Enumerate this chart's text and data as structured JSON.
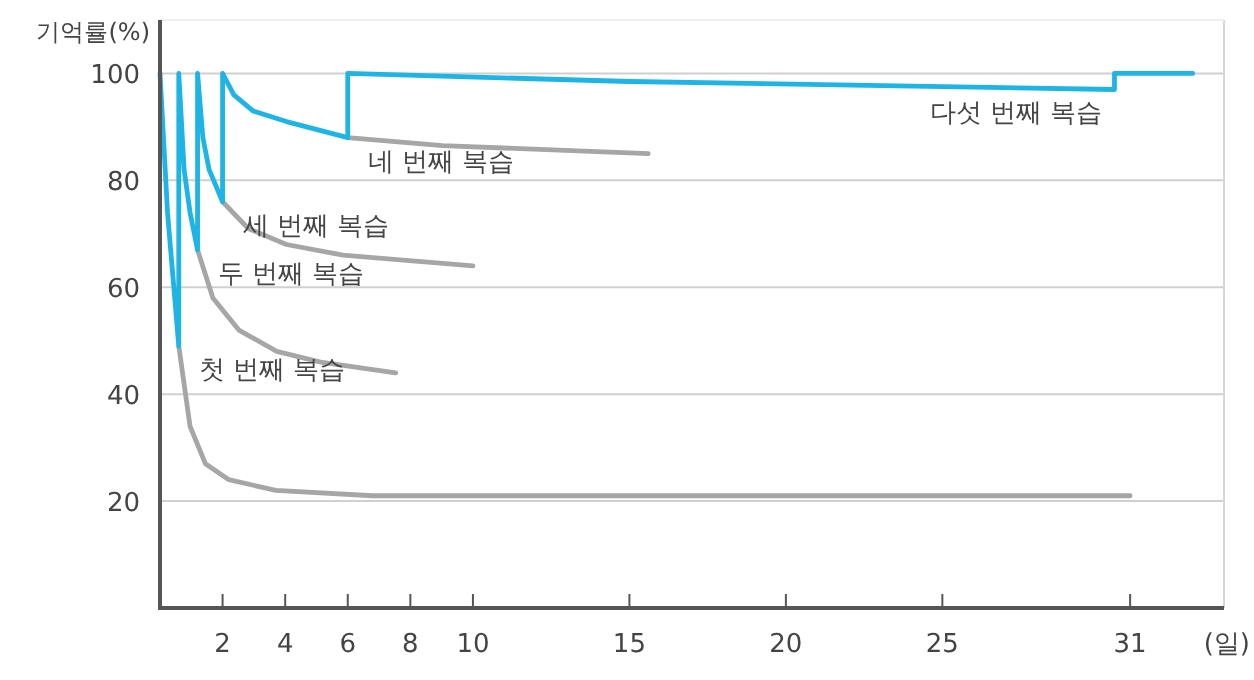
{
  "chart_data": {
    "type": "line",
    "ylabel": "기억률(%)",
    "xlabel": "(일)",
    "xlim": [
      0,
      34
    ],
    "xticks": [
      2,
      4,
      6,
      8,
      10,
      15,
      20,
      25,
      31
    ],
    "ylim": [
      0,
      110
    ],
    "yticks": [
      20,
      40,
      60,
      80,
      100
    ],
    "grid": "y",
    "marker": "none",
    "line_style": "solid",
    "series": [
      {
        "color": "#a6a6a6",
        "x": [
          0.6,
          0.96,
          1.45,
          2.2,
          3.7,
          6.8,
          31
        ],
        "values": [
          49,
          34,
          27,
          24,
          22,
          21,
          21
        ]
      },
      {
        "color": "#a6a6a6",
        "x": [
          1.2,
          1.69,
          2.52,
          3.73,
          5.13,
          7.53
        ],
        "values": [
          67,
          58,
          52,
          48,
          46,
          44
        ]
      },
      {
        "color": "#a6a6a6",
        "x": [
          2,
          2.82,
          4.04,
          5.85,
          10
        ],
        "values": [
          76,
          71,
          68,
          66,
          64
        ]
      },
      {
        "color": "#a6a6a6",
        "x": [
          6,
          9.03,
          15.6
        ],
        "values": [
          88,
          86.5,
          85
        ]
      },
      {
        "color": "#1eb4e6",
        "x": [
          0,
          0.24,
          0.6,
          0.6,
          0.77,
          0.96,
          1.2,
          1.2,
          1.37,
          1.57,
          2,
          2,
          2.36,
          2.97,
          4.04,
          6,
          6,
          15,
          30.5,
          30.5,
          33
        ],
        "values": [
          100,
          74,
          49,
          100,
          82,
          74,
          67,
          100,
          88,
          82,
          76,
          100,
          96,
          93,
          91,
          88,
          100,
          98.5,
          97,
          100,
          100
        ]
      }
    ],
    "annotations": [
      {
        "text": "첫 번째 복습",
        "x": 0.6,
        "y": 49
      },
      {
        "text": "두 번째 복습",
        "x": 1.2,
        "y": 67
      },
      {
        "text": "세 번째 복습",
        "x": 2,
        "y": 76
      },
      {
        "text": "네 번째 복습",
        "x": 6,
        "y": 88
      },
      {
        "text": "다섯 번째 복습",
        "x": 30.5,
        "y": 97
      }
    ]
  }
}
